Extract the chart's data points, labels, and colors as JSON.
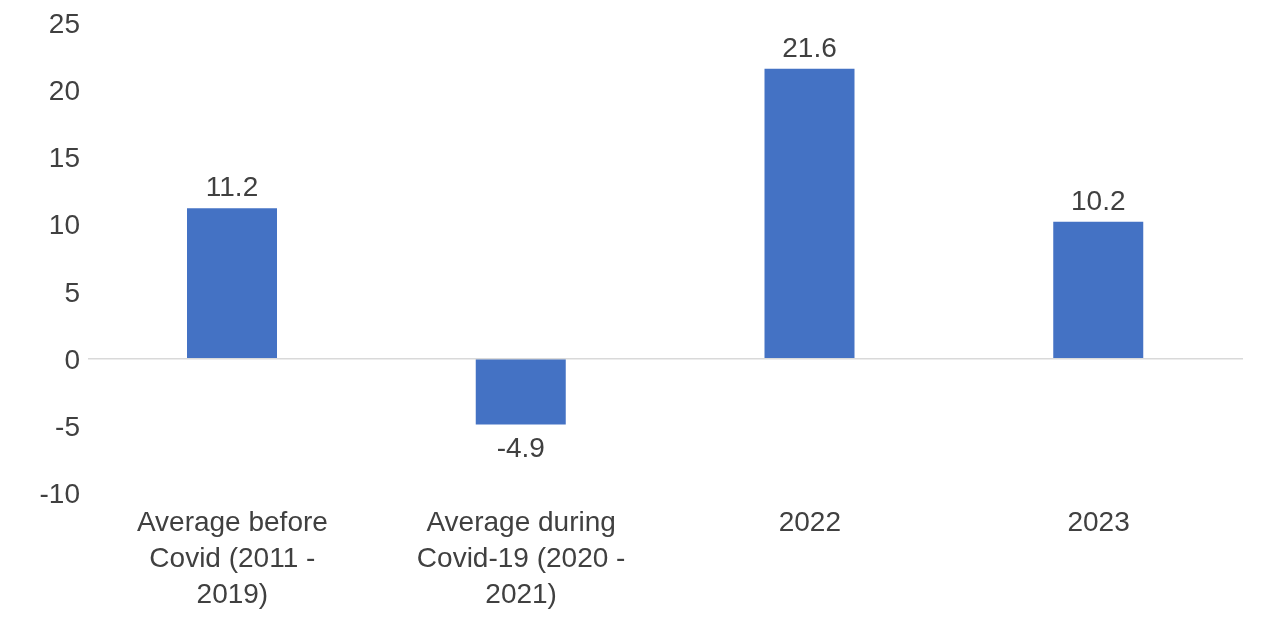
{
  "chart_data": {
    "type": "bar",
    "categories": [
      "Average before Covid (2011 - 2019)",
      "Average during Covid-19 (2020 - 2021)",
      "2022",
      "2023"
    ],
    "values": [
      11.2,
      -4.9,
      21.6,
      10.2
    ],
    "color": "#4472c4",
    "ylim": [
      -10,
      25
    ],
    "yticks": [
      -10,
      -5,
      0,
      5,
      10,
      15,
      20,
      25
    ],
    "ref_lines": [
      {
        "axis": "y",
        "value": 0,
        "color": "#d9d9d9"
      }
    ],
    "data_labels": true
  }
}
